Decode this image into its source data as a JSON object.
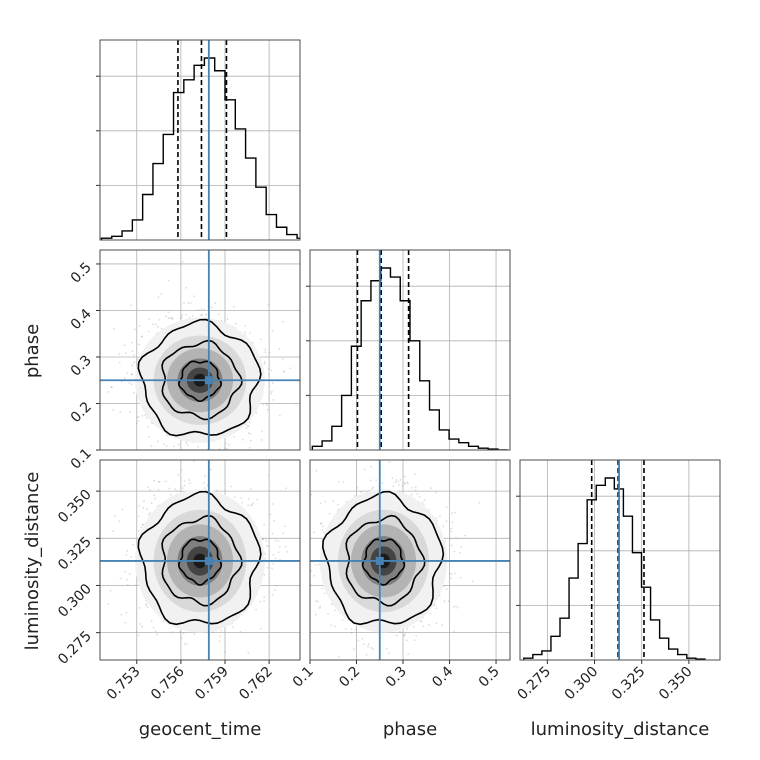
{
  "chart_data": {
    "type": "corner",
    "parameters": [
      "geocent_time",
      "phase",
      "luminosity_distance"
    ],
    "ranges": {
      "geocent_time": [
        0.7505,
        0.7641
      ],
      "phase": [
        0.1,
        0.53
      ],
      "luminosity_distance": [
        0.2605,
        0.3665
      ]
    },
    "ticks": {
      "geocent_time": [
        "0.753",
        "0.756",
        "0.759",
        "0.762"
      ],
      "phase": [
        "0.1",
        "0.2",
        "0.3",
        "0.4",
        "0.5"
      ],
      "luminosity_distance": [
        "0.275",
        "0.300",
        "0.325",
        "0.350"
      ]
    },
    "injection": {
      "geocent_time": 0.7579,
      "phase": 0.25,
      "luminosity_distance": 0.313
    },
    "quantiles": {
      "geocent_time": [
        0.7558,
        0.7574,
        0.7591
      ],
      "phase": [
        0.202,
        0.253,
        0.312
      ],
      "luminosity_distance": [
        0.2985,
        0.3125,
        0.3262
      ]
    },
    "histograms": {
      "geocent_time": {
        "edges_start": 0.7506,
        "bin_width": 0.0007,
        "counts": [
          0.01,
          0.02,
          0.05,
          0.11,
          0.25,
          0.42,
          0.58,
          0.81,
          0.88,
          0.96,
          1.0,
          0.93,
          0.77,
          0.61,
          0.45,
          0.29,
          0.14,
          0.07,
          0.03,
          0.01
        ]
      },
      "phase": {
        "edges_start": 0.105,
        "bin_width": 0.021,
        "counts": [
          0.02,
          0.05,
          0.13,
          0.3,
          0.57,
          0.82,
          0.93,
          1.0,
          0.95,
          0.82,
          0.6,
          0.38,
          0.22,
          0.11,
          0.06,
          0.04,
          0.02,
          0.01,
          0.005,
          0.0
        ]
      },
      "luminosity_distance": {
        "edges_start": 0.2625,
        "bin_width": 0.0048,
        "counts": [
          0.01,
          0.03,
          0.05,
          0.13,
          0.23,
          0.45,
          0.64,
          0.88,
          0.96,
          1.0,
          0.94,
          0.79,
          0.59,
          0.4,
          0.22,
          0.12,
          0.06,
          0.03,
          0.01,
          0.005
        ]
      }
    },
    "joint_2d": {
      "phase_vs_geocent_time": {
        "mean": [
          0.7573,
          0.25
        ],
        "sd": [
          0.0018,
          0.055
        ]
      },
      "luminosity_distance_vs_geocent_time": {
        "mean": [
          0.7573,
          0.313
        ],
        "sd": [
          0.0018,
          0.0155
        ]
      },
      "luminosity_distance_vs_phase": {
        "mean": [
          0.258,
          0.313
        ],
        "sd": [
          0.056,
          0.0155
        ]
      }
    },
    "colors": {
      "truth": "#4682b4",
      "hist": "#000000",
      "grid": "#b0b0b0",
      "scatter": "#9a9a9a"
    },
    "grid": true
  }
}
